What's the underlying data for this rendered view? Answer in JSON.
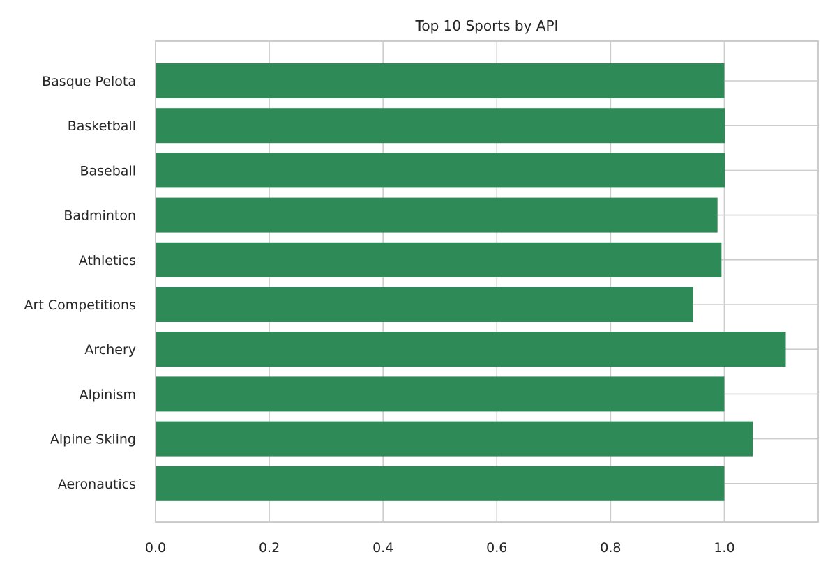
{
  "colors": {
    "bar": "#2e8b57",
    "grid": "#cccccc",
    "axis": "#cccccc",
    "text": "#262626",
    "background": "#ffffff"
  },
  "chart_data": {
    "type": "bar",
    "orientation": "horizontal",
    "title": "Top 10 Sports by API",
    "xlabel": "",
    "ylabel": "",
    "categories": [
      "Aeronautics",
      "Alpine Skiing",
      "Alpinism",
      "Archery",
      "Art Competitions",
      "Athletics",
      "Badminton",
      "Baseball",
      "Basketball",
      "Basque Pelota"
    ],
    "values": [
      1.0,
      1.05,
      1.0,
      1.108,
      0.945,
      0.995,
      0.988,
      1.001,
      1.001,
      1.0
    ],
    "xlim": [
      0,
      1.165
    ],
    "xticks": [
      0.0,
      0.2,
      0.4,
      0.6,
      0.8,
      1.0
    ],
    "xtick_labels": [
      "0.0",
      "0.2",
      "0.4",
      "0.6",
      "0.8",
      "1.0"
    ],
    "grid": true,
    "legend": false
  }
}
